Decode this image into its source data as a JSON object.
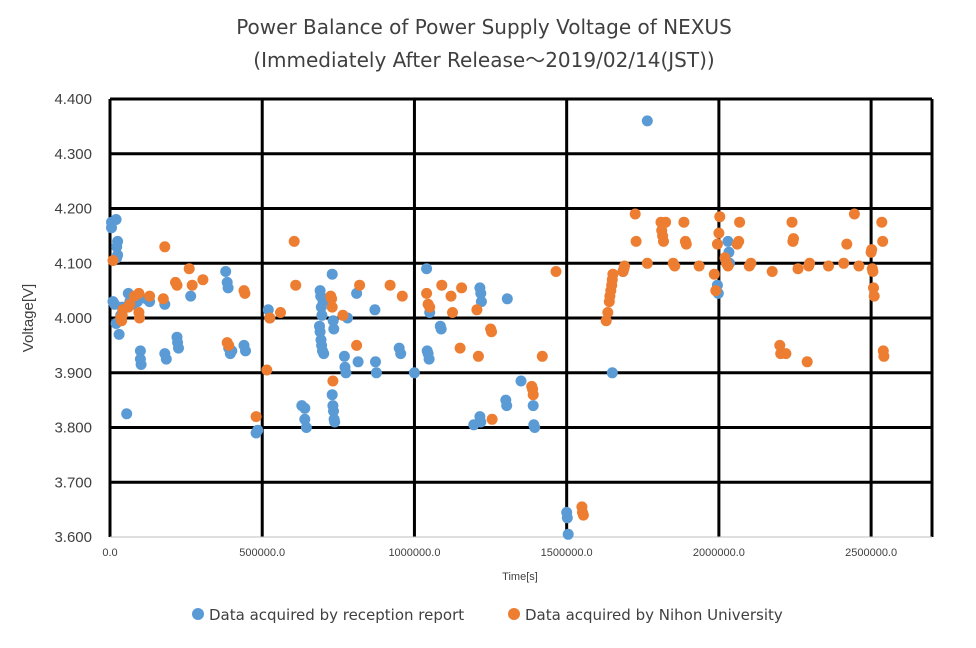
{
  "chart_data": {
    "type": "scatter",
    "title": "Power Balance of Power Supply Voltage of NEXUS",
    "subtitle": "(Immediately After Release～2019/02/14(JST))",
    "xlabel": "Time[s]",
    "ylabel": "Voltage[V]",
    "xlim": [
      0,
      2700000
    ],
    "ylim": [
      3.6,
      4.4
    ],
    "x_ticks": [
      {
        "value": 0,
        "label": "0.0"
      },
      {
        "value": 500000,
        "label": "500000.0"
      },
      {
        "value": 1000000,
        "label": "1000000.0"
      },
      {
        "value": 1500000,
        "label": "1500000.0"
      },
      {
        "value": 2000000,
        "label": "2000000.0"
      },
      {
        "value": 2500000,
        "label": "2500000.0"
      }
    ],
    "y_ticks": [
      {
        "value": 3.6,
        "label": "3.600"
      },
      {
        "value": 3.7,
        "label": "3.700"
      },
      {
        "value": 3.8,
        "label": "3.800"
      },
      {
        "value": 3.9,
        "label": "3.900"
      },
      {
        "value": 4.0,
        "label": "4.000"
      },
      {
        "value": 4.1,
        "label": "4.100"
      },
      {
        "value": 4.2,
        "label": "4.200"
      },
      {
        "value": 4.3,
        "label": "4.300"
      },
      {
        "value": 4.4,
        "label": "4.400"
      }
    ],
    "grid": true,
    "legend_position": "bottom",
    "series": [
      {
        "name": "Data acquired by reception report",
        "color": "#5B9BD5",
        "points": [
          [
            5000,
            4.165
          ],
          [
            5000,
            4.175
          ],
          [
            10000,
            4.03
          ],
          [
            15000,
            4.025
          ],
          [
            20000,
            4.18
          ],
          [
            22000,
            4.13
          ],
          [
            25000,
            4.14
          ],
          [
            25000,
            4.115
          ],
          [
            22000,
            4.11
          ],
          [
            20000,
            3.99
          ],
          [
            30000,
            3.97
          ],
          [
            35000,
            4.005
          ],
          [
            40000,
            4.02
          ],
          [
            55000,
            3.825
          ],
          [
            60000,
            4.045
          ],
          [
            65000,
            4.03
          ],
          [
            75000,
            4.025
          ],
          [
            90000,
            4.03
          ],
          [
            95000,
            4.035
          ],
          [
            100000,
            3.94
          ],
          [
            100000,
            3.925
          ],
          [
            102000,
            3.915
          ],
          [
            120000,
            4.035
          ],
          [
            130000,
            4.03
          ],
          [
            180000,
            4.025
          ],
          [
            180000,
            3.935
          ],
          [
            185000,
            3.925
          ],
          [
            220000,
            3.965
          ],
          [
            222000,
            3.955
          ],
          [
            225000,
            3.945
          ],
          [
            265000,
            4.04
          ],
          [
            380000,
            4.085
          ],
          [
            385000,
            4.065
          ],
          [
            388000,
            4.055
          ],
          [
            390000,
            3.945
          ],
          [
            395000,
            3.935
          ],
          [
            400000,
            3.94
          ],
          [
            440000,
            3.95
          ],
          [
            445000,
            3.94
          ],
          [
            480000,
            3.79
          ],
          [
            485000,
            3.795
          ],
          [
            520000,
            4.015
          ],
          [
            525000,
            4.0
          ],
          [
            630000,
            3.84
          ],
          [
            640000,
            3.835
          ],
          [
            640000,
            3.815
          ],
          [
            645000,
            3.8
          ],
          [
            690000,
            4.05
          ],
          [
            692000,
            4.04
          ],
          [
            694000,
            4.02
          ],
          [
            696000,
            4.005
          ],
          [
            688000,
            3.985
          ],
          [
            690000,
            3.975
          ],
          [
            693000,
            3.96
          ],
          [
            695000,
            3.95
          ],
          [
            698000,
            3.94
          ],
          [
            700000,
            4.03
          ],
          [
            702000,
            3.935
          ],
          [
            730000,
            4.08
          ],
          [
            733000,
            3.995
          ],
          [
            735000,
            3.98
          ],
          [
            730000,
            3.86
          ],
          [
            732000,
            3.84
          ],
          [
            734000,
            3.83
          ],
          [
            736000,
            3.815
          ],
          [
            738000,
            3.81
          ],
          [
            770000,
            3.93
          ],
          [
            772000,
            3.91
          ],
          [
            775000,
            3.9
          ],
          [
            780000,
            4.0
          ],
          [
            810000,
            4.045
          ],
          [
            815000,
            3.92
          ],
          [
            870000,
            4.015
          ],
          [
            872000,
            3.92
          ],
          [
            875000,
            3.9
          ],
          [
            950000,
            3.945
          ],
          [
            955000,
            3.935
          ],
          [
            1000000,
            3.9
          ],
          [
            1040000,
            4.09
          ],
          [
            1042000,
            3.94
          ],
          [
            1045000,
            3.935
          ],
          [
            1048000,
            3.925
          ],
          [
            1050000,
            4.01
          ],
          [
            1085000,
            3.985
          ],
          [
            1088000,
            3.98
          ],
          [
            1195000,
            3.805
          ],
          [
            1215000,
            4.055
          ],
          [
            1218000,
            4.045
          ],
          [
            1220000,
            4.03
          ],
          [
            1215000,
            3.82
          ],
          [
            1218000,
            3.81
          ],
          [
            1300000,
            3.85
          ],
          [
            1303000,
            3.84
          ],
          [
            1305000,
            4.035
          ],
          [
            1350000,
            3.885
          ],
          [
            1390000,
            3.84
          ],
          [
            1392000,
            3.805
          ],
          [
            1395000,
            3.8
          ],
          [
            1500000,
            3.645
          ],
          [
            1502000,
            3.635
          ],
          [
            1505000,
            3.605
          ],
          [
            1650000,
            3.9
          ],
          [
            1685000,
            4.085
          ],
          [
            1765000,
            4.36
          ],
          [
            1995000,
            4.06
          ],
          [
            1998000,
            4.045
          ],
          [
            2030000,
            4.14
          ],
          [
            2033000,
            4.12
          ],
          [
            2035000,
            4.1
          ]
        ]
      },
      {
        "name": "Data acquired by Nihon University",
        "color": "#ED7D31",
        "points": [
          [
            10000,
            4.105
          ],
          [
            35000,
            4.0
          ],
          [
            38000,
            3.995
          ],
          [
            40000,
            4.005
          ],
          [
            42000,
            4.015
          ],
          [
            60000,
            4.02
          ],
          [
            65000,
            4.025
          ],
          [
            80000,
            4.04
          ],
          [
            95000,
            4.045
          ],
          [
            95000,
            4.01
          ],
          [
            97000,
            4.0
          ],
          [
            130000,
            4.04
          ],
          [
            175000,
            4.035
          ],
          [
            180000,
            4.13
          ],
          [
            215000,
            4.065
          ],
          [
            220000,
            4.06
          ],
          [
            260000,
            4.09
          ],
          [
            270000,
            4.06
          ],
          [
            305000,
            4.07
          ],
          [
            385000,
            3.955
          ],
          [
            390000,
            3.95
          ],
          [
            440000,
            4.05
          ],
          [
            443000,
            4.045
          ],
          [
            480000,
            3.82
          ],
          [
            515000,
            3.905
          ],
          [
            525000,
            4.0
          ],
          [
            560000,
            4.01
          ],
          [
            605000,
            4.14
          ],
          [
            610000,
            4.06
          ],
          [
            725000,
            4.04
          ],
          [
            728000,
            4.035
          ],
          [
            730000,
            4.02
          ],
          [
            732000,
            3.885
          ],
          [
            765000,
            4.005
          ],
          [
            810000,
            3.95
          ],
          [
            820000,
            4.06
          ],
          [
            920000,
            4.06
          ],
          [
            960000,
            4.04
          ],
          [
            1040000,
            4.045
          ],
          [
            1045000,
            4.025
          ],
          [
            1050000,
            4.02
          ],
          [
            1090000,
            4.06
          ],
          [
            1120000,
            4.04
          ],
          [
            1125000,
            4.01
          ],
          [
            1150000,
            3.945
          ],
          [
            1155000,
            4.055
          ],
          [
            1205000,
            4.015
          ],
          [
            1210000,
            3.93
          ],
          [
            1250000,
            3.98
          ],
          [
            1253000,
            3.975
          ],
          [
            1255000,
            3.815
          ],
          [
            1385000,
            3.875
          ],
          [
            1388000,
            3.87
          ],
          [
            1390000,
            3.86
          ],
          [
            1420000,
            3.93
          ],
          [
            1465000,
            4.085
          ],
          [
            1550000,
            3.655
          ],
          [
            1552000,
            3.645
          ],
          [
            1555000,
            3.64
          ],
          [
            1630000,
            3.995
          ],
          [
            1635000,
            4.01
          ],
          [
            1640000,
            4.03
          ],
          [
            1642000,
            4.04
          ],
          [
            1645000,
            4.05
          ],
          [
            1648000,
            4.06
          ],
          [
            1650000,
            4.07
          ],
          [
            1652000,
            4.08
          ],
          [
            1685000,
            4.085
          ],
          [
            1688000,
            4.09
          ],
          [
            1690000,
            4.095
          ],
          [
            1725000,
            4.19
          ],
          [
            1728000,
            4.14
          ],
          [
            1765000,
            4.1
          ],
          [
            1810000,
            4.175
          ],
          [
            1812000,
            4.16
          ],
          [
            1815000,
            4.15
          ],
          [
            1818000,
            4.14
          ],
          [
            1825000,
            4.175
          ],
          [
            1850000,
            4.1
          ],
          [
            1855000,
            4.095
          ],
          [
            1885000,
            4.175
          ],
          [
            1890000,
            4.14
          ],
          [
            1893000,
            4.135
          ],
          [
            1935000,
            4.095
          ],
          [
            1985000,
            4.08
          ],
          [
            1990000,
            4.05
          ],
          [
            1995000,
            4.135
          ],
          [
            2000000,
            4.155
          ],
          [
            2003000,
            4.185
          ],
          [
            2020000,
            4.11
          ],
          [
            2025000,
            4.1
          ],
          [
            2030000,
            4.095
          ],
          [
            2060000,
            4.135
          ],
          [
            2065000,
            4.14
          ],
          [
            2068000,
            4.175
          ],
          [
            2100000,
            4.095
          ],
          [
            2105000,
            4.1
          ],
          [
            2175000,
            4.085
          ],
          [
            2200000,
            3.95
          ],
          [
            2203000,
            3.935
          ],
          [
            2220000,
            3.935
          ],
          [
            2240000,
            4.175
          ],
          [
            2243000,
            4.14
          ],
          [
            2245000,
            4.145
          ],
          [
            2260000,
            4.09
          ],
          [
            2290000,
            3.92
          ],
          [
            2295000,
            4.095
          ],
          [
            2298000,
            4.1
          ],
          [
            2360000,
            4.095
          ],
          [
            2410000,
            4.1
          ],
          [
            2420000,
            4.135
          ],
          [
            2445000,
            4.19
          ],
          [
            2460000,
            4.095
          ],
          [
            2500000,
            4.12
          ],
          [
            2502000,
            4.125
          ],
          [
            2504000,
            4.09
          ],
          [
            2506000,
            4.085
          ],
          [
            2508000,
            4.055
          ],
          [
            2510000,
            4.04
          ],
          [
            2535000,
            4.175
          ],
          [
            2538000,
            4.14
          ],
          [
            2540000,
            3.94
          ],
          [
            2542000,
            3.93
          ]
        ]
      }
    ]
  }
}
